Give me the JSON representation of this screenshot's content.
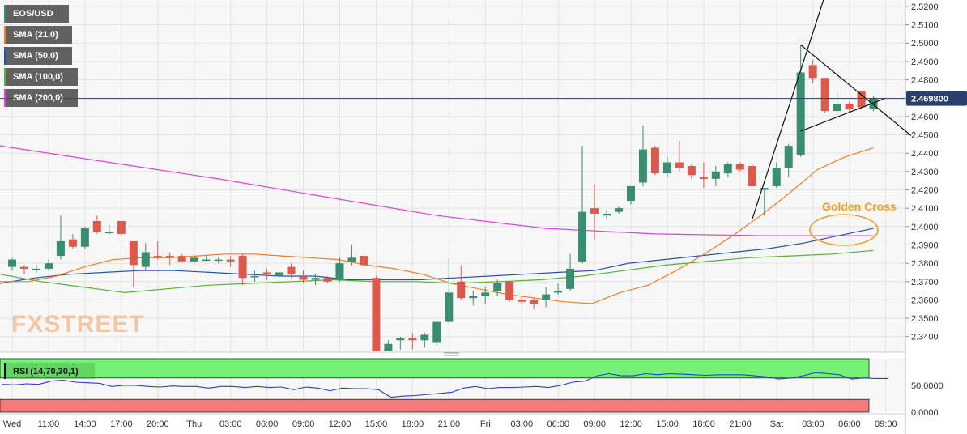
{
  "chart_data": [
    {
      "type": "candlestick",
      "symbol": "EOS/USD",
      "watermark": "FXSTREET",
      "indicators": [
        {
          "label": "SMA (21,0)",
          "color": "#f07f2a"
        },
        {
          "label": "SMA (50,0)",
          "color": "#2155a8"
        },
        {
          "label": "SMA (100,0)",
          "color": "#56b03a"
        },
        {
          "label": "SMA (200,0)",
          "color": "#e040e0"
        }
      ],
      "last_price": {
        "value": 2.4698,
        "label": "2.469800"
      },
      "annotation": {
        "text": "Golden Cross",
        "color": "#f0a020"
      },
      "y_ticks": [
        "2.5200",
        "2.5100",
        "2.5000",
        "2.4900",
        "2.4800",
        "2.4700",
        "2.4600",
        "2.4500",
        "2.4400",
        "2.4300",
        "2.4200",
        "2.4100",
        "2.4000",
        "2.3900",
        "2.3800",
        "2.3700",
        "2.3600",
        "2.3500",
        "2.3400"
      ],
      "ylim": [
        2.3315,
        2.5235
      ],
      "x_labels": [
        "Wed",
        "11:00",
        "14:00",
        "17:00",
        "20:00",
        "Thu",
        "03:00",
        "06:00",
        "09:00",
        "12:00",
        "15:00",
        "18:00",
        "21:00",
        "Fri",
        "03:00",
        "06:00",
        "09:00",
        "12:00",
        "15:00",
        "18:00",
        "21:00",
        "Sat",
        "03:00",
        "06:00",
        "09:00"
      ],
      "candles": [
        {
          "o": 2.378,
          "h": 2.383,
          "l": 2.376,
          "c": 2.382
        },
        {
          "o": 2.378,
          "h": 2.379,
          "l": 2.374,
          "c": 2.377
        },
        {
          "o": 2.377,
          "h": 2.379,
          "l": 2.375,
          "c": 2.377
        },
        {
          "o": 2.377,
          "h": 2.382,
          "l": 2.376,
          "c": 2.38
        },
        {
          "o": 2.384,
          "h": 2.406,
          "l": 2.382,
          "c": 2.392
        },
        {
          "o": 2.393,
          "h": 2.396,
          "l": 2.388,
          "c": 2.389
        },
        {
          "o": 2.389,
          "h": 2.4,
          "l": 2.388,
          "c": 2.399
        },
        {
          "o": 2.403,
          "h": 2.406,
          "l": 2.396,
          "c": 2.397
        },
        {
          "o": 2.397,
          "h": 2.401,
          "l": 2.396,
          "c": 2.397
        },
        {
          "o": 2.403,
          "h": 2.403,
          "l": 2.395,
          "c": 2.396
        },
        {
          "o": 2.392,
          "h": 2.392,
          "l": 2.367,
          "c": 2.379
        },
        {
          "o": 2.378,
          "h": 2.391,
          "l": 2.376,
          "c": 2.386
        },
        {
          "o": 2.384,
          "h": 2.392,
          "l": 2.382,
          "c": 2.383
        },
        {
          "o": 2.384,
          "h": 2.386,
          "l": 2.379,
          "c": 2.383
        },
        {
          "o": 2.384,
          "h": 2.385,
          "l": 2.381,
          "c": 2.381
        },
        {
          "o": 2.381,
          "h": 2.385,
          "l": 2.379,
          "c": 2.383
        },
        {
          "o": 2.382,
          "h": 2.384,
          "l": 2.381,
          "c": 2.382
        },
        {
          "o": 2.382,
          "h": 2.383,
          "l": 2.38,
          "c": 2.382
        },
        {
          "o": 2.382,
          "h": 2.384,
          "l": 2.378,
          "c": 2.381
        },
        {
          "o": 2.384,
          "h": 2.385,
          "l": 2.368,
          "c": 2.372
        },
        {
          "o": 2.373,
          "h": 2.376,
          "l": 2.37,
          "c": 2.373
        },
        {
          "o": 2.375,
          "h": 2.377,
          "l": 2.371,
          "c": 2.374
        },
        {
          "o": 2.373,
          "h": 2.377,
          "l": 2.373,
          "c": 2.375
        },
        {
          "o": 2.378,
          "h": 2.38,
          "l": 2.372,
          "c": 2.374
        },
        {
          "o": 2.373,
          "h": 2.376,
          "l": 2.369,
          "c": 2.371
        },
        {
          "o": 2.371,
          "h": 2.374,
          "l": 2.368,
          "c": 2.372
        },
        {
          "o": 2.372,
          "h": 2.373,
          "l": 2.369,
          "c": 2.37
        },
        {
          "o": 2.371,
          "h": 2.383,
          "l": 2.37,
          "c": 2.38
        },
        {
          "o": 2.381,
          "h": 2.39,
          "l": 2.379,
          "c": 2.383
        },
        {
          "o": 2.384,
          "h": 2.385,
          "l": 2.376,
          "c": 2.379
        },
        {
          "o": 2.372,
          "h": 2.373,
          "l": 2.332,
          "c": 2.332
        },
        {
          "o": 2.332,
          "h": 2.338,
          "l": 2.332,
          "c": 2.336
        },
        {
          "o": 2.338,
          "h": 2.34,
          "l": 2.333,
          "c": 2.339
        },
        {
          "o": 2.339,
          "h": 2.342,
          "l": 2.333,
          "c": 2.338
        },
        {
          "o": 2.338,
          "h": 2.342,
          "l": 2.334,
          "c": 2.341
        },
        {
          "o": 2.337,
          "h": 2.348,
          "l": 2.335,
          "c": 2.348
        },
        {
          "o": 2.348,
          "h": 2.383,
          "l": 2.347,
          "c": 2.364
        },
        {
          "o": 2.37,
          "h": 2.379,
          "l": 2.36,
          "c": 2.361
        },
        {
          "o": 2.361,
          "h": 2.365,
          "l": 2.357,
          "c": 2.362
        },
        {
          "o": 2.362,
          "h": 2.367,
          "l": 2.358,
          "c": 2.364
        },
        {
          "o": 2.365,
          "h": 2.371,
          "l": 2.362,
          "c": 2.369
        },
        {
          "o": 2.37,
          "h": 2.37,
          "l": 2.359,
          "c": 2.36
        },
        {
          "o": 2.36,
          "h": 2.362,
          "l": 2.358,
          "c": 2.359
        },
        {
          "o": 2.36,
          "h": 2.361,
          "l": 2.355,
          "c": 2.358
        },
        {
          "o": 2.36,
          "h": 2.367,
          "l": 2.356,
          "c": 2.363
        },
        {
          "o": 2.364,
          "h": 2.369,
          "l": 2.363,
          "c": 2.365
        },
        {
          "o": 2.366,
          "h": 2.385,
          "l": 2.365,
          "c": 2.377
        },
        {
          "o": 2.381,
          "h": 2.444,
          "l": 2.38,
          "c": 2.408
        },
        {
          "o": 2.41,
          "h": 2.423,
          "l": 2.393,
          "c": 2.407
        },
        {
          "o": 2.406,
          "h": 2.409,
          "l": 2.404,
          "c": 2.407
        },
        {
          "o": 2.408,
          "h": 2.411,
          "l": 2.407,
          "c": 2.41
        },
        {
          "o": 2.414,
          "h": 2.422,
          "l": 2.412,
          "c": 2.422
        },
        {
          "o": 2.424,
          "h": 2.455,
          "l": 2.422,
          "c": 2.442
        },
        {
          "o": 2.443,
          "h": 2.444,
          "l": 2.428,
          "c": 2.429
        },
        {
          "o": 2.429,
          "h": 2.438,
          "l": 2.427,
          "c": 2.435
        },
        {
          "o": 2.435,
          "h": 2.447,
          "l": 2.43,
          "c": 2.432
        },
        {
          "o": 2.433,
          "h": 2.434,
          "l": 2.426,
          "c": 2.428
        },
        {
          "o": 2.427,
          "h": 2.435,
          "l": 2.421,
          "c": 2.426
        },
        {
          "o": 2.426,
          "h": 2.433,
          "l": 2.422,
          "c": 2.43
        },
        {
          "o": 2.429,
          "h": 2.435,
          "l": 2.427,
          "c": 2.434
        },
        {
          "o": 2.434,
          "h": 2.435,
          "l": 2.43,
          "c": 2.431
        },
        {
          "o": 2.433,
          "h": 2.434,
          "l": 2.422,
          "c": 2.422
        },
        {
          "o": 2.42,
          "h": 2.421,
          "l": 2.406,
          "c": 2.421
        },
        {
          "o": 2.422,
          "h": 2.435,
          "l": 2.421,
          "c": 2.432
        },
        {
          "o": 2.432,
          "h": 2.445,
          "l": 2.427,
          "c": 2.444
        },
        {
          "o": 2.439,
          "h": 2.499,
          "l": 2.438,
          "c": 2.484
        },
        {
          "o": 2.488,
          "h": 2.491,
          "l": 2.478,
          "c": 2.481
        },
        {
          "o": 2.481,
          "h": 2.481,
          "l": 2.462,
          "c": 2.463
        },
        {
          "o": 2.463,
          "h": 2.474,
          "l": 2.462,
          "c": 2.467
        },
        {
          "o": 2.467,
          "h": 2.468,
          "l": 2.462,
          "c": 2.464
        },
        {
          "o": 2.474,
          "h": 2.474,
          "l": 2.464,
          "c": 2.465
        },
        {
          "o": 2.464,
          "h": 2.471,
          "l": 2.463,
          "c": 2.47
        }
      ],
      "sma21": [
        2.37,
        2.37,
        2.373,
        2.378,
        2.382,
        2.383,
        2.383,
        2.384,
        2.385,
        2.385,
        2.384,
        2.383,
        2.382,
        2.379,
        2.377,
        2.374,
        2.369,
        2.366,
        2.363,
        2.361,
        2.359,
        2.358,
        2.364,
        2.368,
        2.376,
        2.385,
        2.395,
        2.406,
        2.418,
        2.431,
        2.438,
        2.443
      ],
      "sma50": [
        2.369,
        2.372,
        2.374,
        2.375,
        2.376,
        2.376,
        2.375,
        2.374,
        2.373,
        2.373,
        2.371,
        2.371,
        2.371,
        2.372,
        2.373,
        2.374,
        2.375,
        2.376,
        2.38,
        2.382,
        2.384,
        2.386,
        2.388,
        2.391,
        2.395,
        2.399
      ],
      "sma100": [
        2.374,
        2.37,
        2.367,
        2.364,
        2.366,
        2.368,
        2.369,
        2.37,
        2.371,
        2.37,
        2.37,
        2.369,
        2.37,
        2.371,
        2.373,
        2.376,
        2.379,
        2.381,
        2.383,
        2.384,
        2.385,
        2.387
      ],
      "sma200": [
        2.444,
        2.435,
        2.426,
        2.416,
        2.406,
        2.399,
        2.396,
        2.395,
        2.395
      ],
      "trendlines": [
        {
          "from": [
            61,
            2.404
          ],
          "to": [
            67,
            2.526
          ]
        },
        {
          "from": [
            65,
            2.499
          ],
          "to": [
            72,
            2.461
          ]
        },
        {
          "from": [
            65,
            2.452
          ],
          "to": [
            72,
            2.47
          ]
        }
      ],
      "rsi": {
        "label": "RSI (14,70,30,1)",
        "overbought": 70,
        "oversold": 30,
        "y_tick_labels": [
          "50.0000",
          "0.0000"
        ],
        "values": [
          52,
          51,
          53,
          52,
          58,
          60,
          56,
          55,
          54,
          48,
          50,
          50,
          48,
          47,
          49,
          48,
          48,
          45,
          48,
          48,
          46,
          48,
          46,
          47,
          42,
          47,
          45,
          40,
          45,
          44,
          44,
          42,
          28,
          30,
          31,
          33,
          35,
          37,
          45,
          48,
          44,
          46,
          46,
          47,
          48,
          46,
          50,
          56,
          58,
          68,
          72,
          68,
          68,
          72,
          70,
          72,
          71,
          70,
          69,
          70,
          70,
          70,
          68,
          66,
          62,
          64,
          68,
          74,
          72,
          70,
          62,
          64,
          63,
          63
        ]
      }
    }
  ]
}
